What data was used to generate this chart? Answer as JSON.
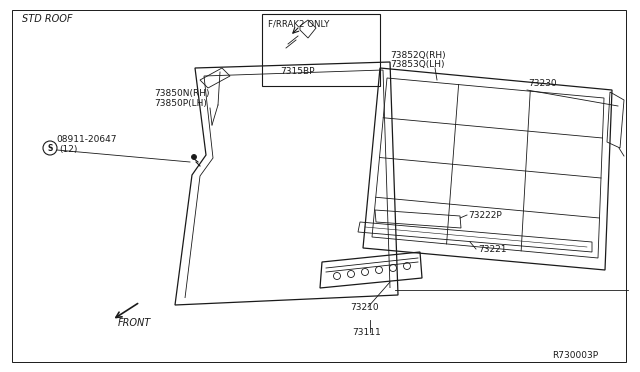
{
  "background_color": "#ffffff",
  "std_roof_label": "STD ROOF",
  "f_rrake2_label": "F/RRAK2 ONLY",
  "part_7315BP": "7315BP",
  "part_73850N_RH": "73850N(RH)",
  "part_73850P_LH": "73850P(LH)",
  "part_08911": "08911-20647",
  "part_08911_qty": "(12)",
  "part_73852Q_RH": "73852Q(RH)",
  "part_73853Q_LH": "73853Q(LH)",
  "part_73230": "73230",
  "part_73222P": "73222P",
  "part_73221": "73221",
  "part_73210": "73210",
  "part_73111": "73111",
  "ref_code": "R730003P",
  "front_label": "FRONT",
  "color": "#1a1a1a",
  "lw_main": 0.9,
  "lw_thin": 0.6
}
